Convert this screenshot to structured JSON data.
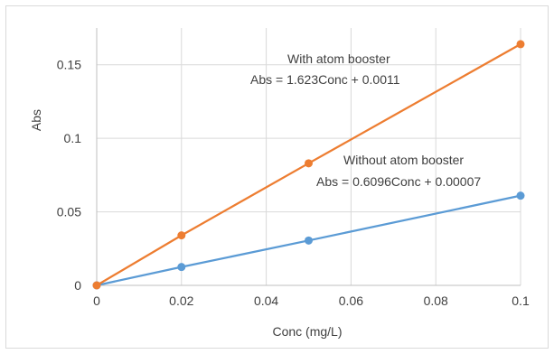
{
  "chart_data": {
    "type": "scatter",
    "xlabel": "Conc (mg/L)",
    "ylabel": "Abs",
    "xlim": [
      0,
      0.1
    ],
    "ylim": [
      0,
      0.175
    ],
    "x_ticks": [
      "0",
      "0.02",
      "0.04",
      "0.06",
      "0.08",
      "0.1"
    ],
    "y_ticks": [
      "0",
      "0.05",
      "0.1",
      "0.15"
    ],
    "grid": true,
    "legend": "none",
    "series": [
      {
        "color": "#ed7d31",
        "points": [
          {
            "x": 0,
            "y": 0
          },
          {
            "x": 0.02,
            "y": 0.034
          },
          {
            "x": 0.05,
            "y": 0.083
          },
          {
            "x": 0.1,
            "y": 0.164
          }
        ]
      },
      {
        "color": "#5b9bd5",
        "points": [
          {
            "x": 0,
            "y": 0
          },
          {
            "x": 0.02,
            "y": 0.0125
          },
          {
            "x": 0.05,
            "y": 0.0305
          },
          {
            "x": 0.1,
            "y": 0.061
          }
        ]
      }
    ],
    "annotations": [
      {
        "line1": "With atom booster",
        "line2": "Abs = 1.623Conc + 0.0011"
      },
      {
        "line1": "Without atom booster",
        "line2": "Abs = 0.6096Conc + 0.00007"
      }
    ]
  }
}
